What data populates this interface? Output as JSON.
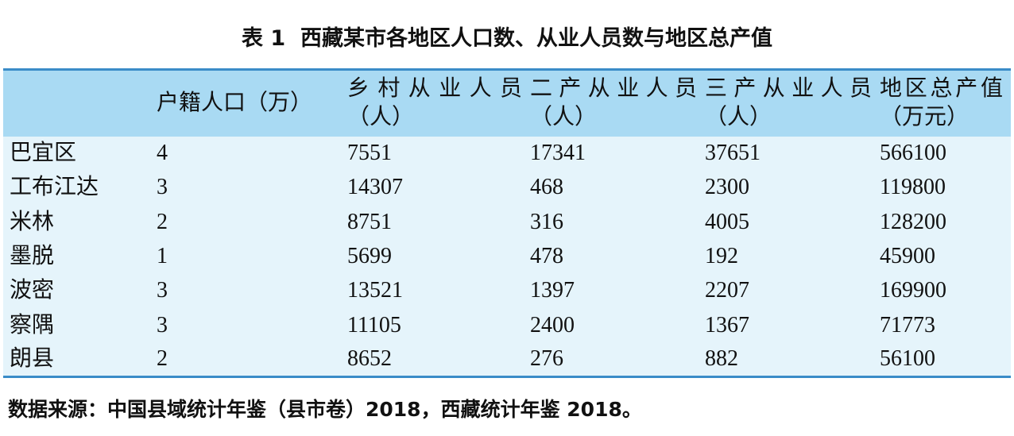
{
  "title": "表 1  西藏某市各地区人口数、从业人员数与地区总产值",
  "table": {
    "header": [
      "",
      "户籍人口（万）",
      "乡村从业人员（人）",
      "二产从业人员（人）",
      "三产从业人员（人）",
      "地区总产值（万元）"
    ],
    "rows": [
      [
        "巴宜区",
        "4",
        "7551",
        "17341",
        "37651",
        "566100"
      ],
      [
        "工布江达",
        "3",
        "14307",
        "468",
        "2300",
        "119800"
      ],
      [
        "米林",
        "2",
        "8751",
        "316",
        "4005",
        "128200"
      ],
      [
        "墨脱",
        "1",
        "5699",
        "478",
        "192",
        "45900"
      ],
      [
        "波密",
        "3",
        "13521",
        "1397",
        "2207",
        "169900"
      ],
      [
        "察隅",
        "3",
        "11105",
        "2400",
        "1367",
        "71773"
      ],
      [
        "朗县",
        "2",
        "8652",
        "276",
        "882",
        "56100"
      ]
    ]
  },
  "source": "数据来源：中国县域统计年鉴（县市卷）2018，西藏统计年鉴 2018。"
}
